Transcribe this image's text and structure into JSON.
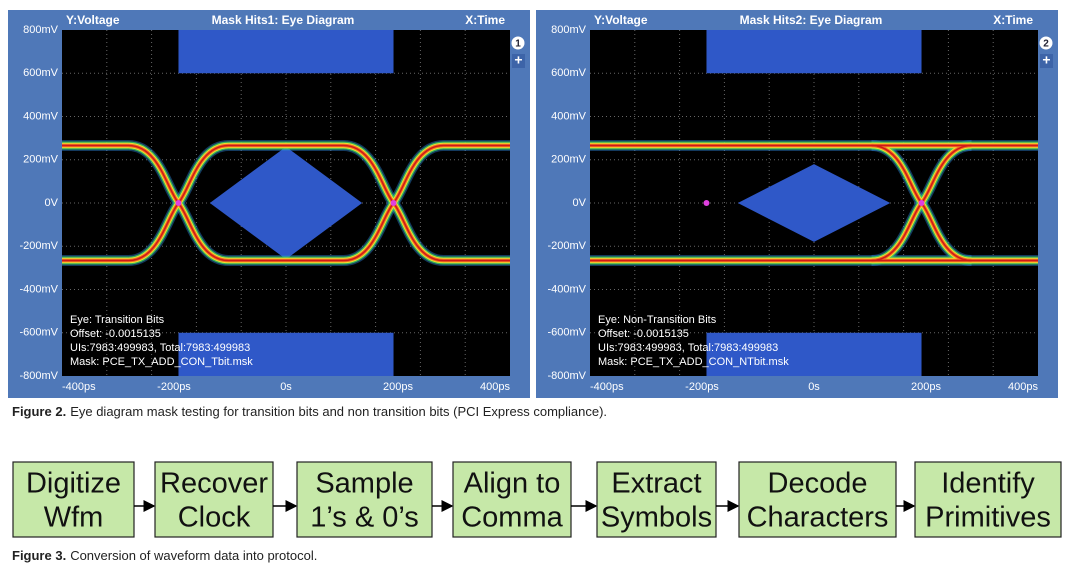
{
  "figure2": {
    "panels": [
      {
        "y_axis_label": "Y:Voltage",
        "title": "Mask Hits1: Eye Diagram",
        "x_axis_label": "X:Time",
        "badge": "1",
        "zoom_button": "+",
        "y_ticks": [
          "800mV",
          "600mV",
          "400mV",
          "200mV",
          "0V",
          "-200mV",
          "-400mV",
          "-600mV",
          "-800mV"
        ],
        "x_ticks": [
          "-400ps",
          "-200ps",
          "0s",
          "200ps",
          "400ps"
        ],
        "info": [
          "Eye: Transition Bits",
          "Offset: -0.0015135",
          "UIs:7983:499983, Total:7983:499983",
          "Mask: PCE_TX_ADD_CON_Tbit.msk"
        ]
      },
      {
        "y_axis_label": "Y:Voltage",
        "title": "Mask Hits2: Eye Diagram",
        "x_axis_label": "X:Time",
        "badge": "2",
        "zoom_button": "+",
        "y_ticks": [
          "800mV",
          "600mV",
          "400mV",
          "200mV",
          "0V",
          "-200mV",
          "-400mV",
          "-600mV",
          "-800mV"
        ],
        "x_ticks": [
          "-400ps",
          "-200ps",
          "0s",
          "200ps",
          "400ps"
        ],
        "info": [
          "Eye: Non-Transition Bits",
          "Offset: -0.0015135",
          "UIs:7983:499983, Total:7983:499983",
          "Mask: PCE_TX_ADD_CON_NTbit.msk"
        ]
      }
    ],
    "caption_label": "Figure 2.",
    "caption": "Eye diagram mask testing for transition bits and non transition bits (PCI Express compliance)."
  },
  "figure3": {
    "steps": [
      {
        "lines": [
          "Digitize",
          "Wfm"
        ]
      },
      {
        "lines": [
          "Recover",
          "Clock"
        ]
      },
      {
        "lines": [
          "Sample",
          "1’s & 0’s"
        ]
      },
      {
        "lines": [
          "Align to",
          "Comma"
        ]
      },
      {
        "lines": [
          "Extract",
          "Symbols"
        ]
      },
      {
        "lines": [
          "Decode",
          "Characters"
        ]
      },
      {
        "lines": [
          "Identify",
          "Primitives"
        ]
      }
    ],
    "caption_label": "Figure 3.",
    "caption": "Conversion of waveform data into protocol."
  }
}
